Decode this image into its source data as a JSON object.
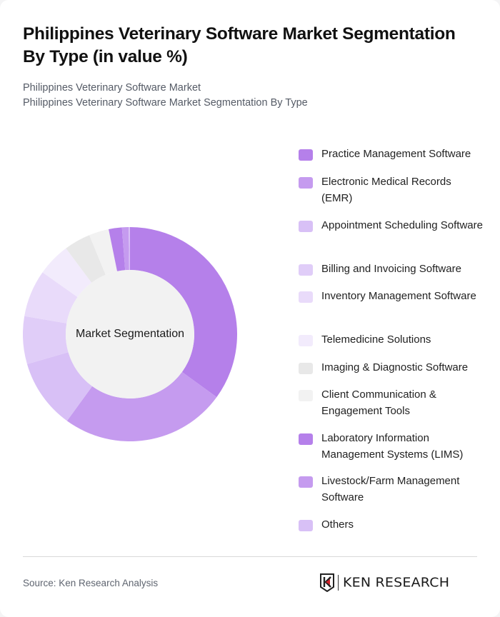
{
  "header": {
    "title": "Philippines Veterinary Software Market Segmentation By Type (in value %)",
    "subtitle_1": "Philippines Veterinary Software Market",
    "subtitle_2": "Philippines Veterinary Software Market Segmentation By Type"
  },
  "chart": {
    "center_label": "Market Segmentation"
  },
  "legend": {
    "items": [
      {
        "label": "Practice Management Software",
        "color": "#b580ea"
      },
      {
        "label": "Electronic Medical Records (EMR)",
        "color": "#c59bef"
      },
      {
        "label": "Appointment Scheduling Software",
        "color": "#d8c0f6"
      },
      {
        "label": "Billing and Invoicing Software",
        "color": "#e0cdf8"
      },
      {
        "label": "Inventory Management Software",
        "color": "#e9dbfa"
      },
      {
        "label": "Telemedicine Solutions",
        "color": "#f2ebfc"
      },
      {
        "label": "Imaging & Diagnostic Software",
        "color": "#e8e8e8"
      },
      {
        "label": "Client Communication & Engagement Tools",
        "color": "#f2f2f2"
      },
      {
        "label": "Laboratory Information Management Systems (LIMS)",
        "color": "#b580ea"
      },
      {
        "label": "Livestock/Farm Management Software",
        "color": "#c59bef"
      },
      {
        "label": "Others",
        "color": "#d8c0f6"
      }
    ]
  },
  "footer": {
    "source": "Source: Ken Research Analysis",
    "logo_text": "KEN RESEARCH"
  },
  "chart_data": {
    "type": "pie",
    "subtype": "donut",
    "title": "Philippines Veterinary Software Market Segmentation By Type (in value %)",
    "center_label": "Market Segmentation",
    "categories": [
      "Practice Management Software",
      "Electronic Medical Records (EMR)",
      "Appointment Scheduling Software",
      "Billing and Invoicing Software",
      "Inventory Management Software",
      "Telemedicine Solutions",
      "Imaging & Diagnostic Software",
      "Client Communication & Engagement Tools",
      "Laboratory Information Management Systems (LIMS)",
      "Livestock/Farm Management Software",
      "Others"
    ],
    "values": [
      35,
      25,
      10.5,
      7.2,
      7.1,
      5,
      4,
      3,
      2,
      1,
      0.2
    ],
    "colors": [
      "#b580ea",
      "#c59bef",
      "#d8c0f6",
      "#e0cdf8",
      "#e9dbfa",
      "#f2ebfc",
      "#e8e8e8",
      "#f2f2f2",
      "#b580ea",
      "#c59bef",
      "#d8c0f6"
    ],
    "unit": "%",
    "start_angle": "12 o'clock, clockwise",
    "legend_position": "right"
  }
}
